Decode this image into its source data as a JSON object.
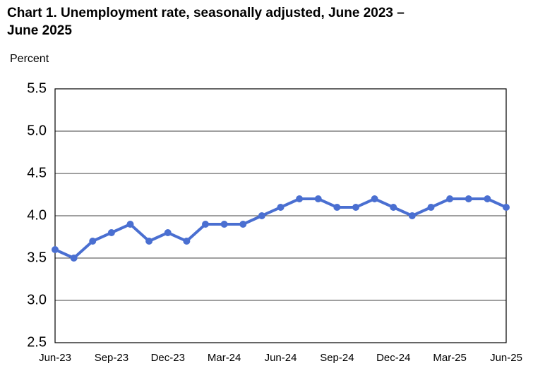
{
  "chart_data": {
    "type": "line",
    "title": "Chart 1. Unemployment rate, seasonally adjusted, June 2023 – June 2025",
    "y_label": "Percent",
    "categories": [
      "Jun-23",
      null,
      null,
      "Sep-23",
      null,
      null,
      "Dec-23",
      null,
      null,
      "Mar-24",
      null,
      null,
      "Jun-24",
      null,
      null,
      "Sep-24",
      null,
      null,
      "Dec-24",
      null,
      null,
      "Mar-25",
      null,
      null,
      "Jun-25"
    ],
    "series": [
      {
        "color": "#4a6fd1",
        "values": [
          3.6,
          3.5,
          3.7,
          3.8,
          3.9,
          3.7,
          3.8,
          3.7,
          3.9,
          3.9,
          3.9,
          4.0,
          4.1,
          4.2,
          4.2,
          4.1,
          4.1,
          4.2,
          4.1,
          4.0,
          4.1,
          4.2,
          4.2,
          4.2,
          4.1
        ]
      }
    ],
    "ylim": [
      2.5,
      5.5
    ],
    "yticks": [
      2.5,
      {
        "value": 3,
        "label": "3.0"
      },
      3.5,
      {
        "value": 4,
        "label": "4.0"
      },
      4.5,
      {
        "value": 5,
        "label": "5.0"
      },
      5.5
    ],
    "grid": true
  }
}
